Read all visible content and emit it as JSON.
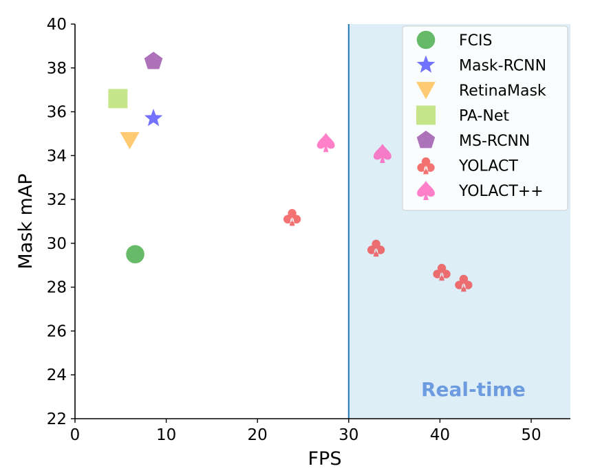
{
  "chart_data": {
    "type": "scatter",
    "xlabel": "FPS",
    "ylabel": "Mask mAP",
    "xlim": [
      0,
      54.3
    ],
    "ylim": [
      22,
      40
    ],
    "xticks": [
      "0",
      "10",
      "20",
      "30",
      "40",
      "50"
    ],
    "yticks": [
      "22",
      "24",
      "26",
      "28",
      "30",
      "32",
      "34",
      "36",
      "38",
      "40"
    ],
    "grid": false,
    "legend_position": "top-right",
    "region": {
      "label": "Real-time",
      "x_start": 30,
      "fill": "#ddeef6",
      "line_color": "#1f77b4",
      "label_color": "#6c9be0"
    },
    "series": [
      {
        "name": "FCIS",
        "marker": "circle",
        "color": "#2ca02c",
        "points": [
          {
            "x": 6.6,
            "y": 29.5
          }
        ]
      },
      {
        "name": "Mask-RCNN",
        "marker": "star",
        "color": "#3b3bff",
        "points": [
          {
            "x": 8.6,
            "y": 35.7
          }
        ]
      },
      {
        "name": "RetinaMask",
        "marker": "triangle-down",
        "color": "#ffb63b",
        "points": [
          {
            "x": 6.0,
            "y": 34.7
          }
        ]
      },
      {
        "name": "PA-Net",
        "marker": "square",
        "color": "#b2db5e",
        "points": [
          {
            "x": 4.7,
            "y": 36.6
          }
        ]
      },
      {
        "name": "MS-RCNN",
        "marker": "pentagon",
        "color": "#8e3c9f",
        "points": [
          {
            "x": 8.6,
            "y": 38.3
          }
        ]
      },
      {
        "name": "YOLACT",
        "marker": "club",
        "color": "#f03c3c",
        "points": [
          {
            "x": 23.8,
            "y": 31.2
          },
          {
            "x": 33.0,
            "y": 29.8
          },
          {
            "x": 40.2,
            "y": 28.7
          },
          {
            "x": 42.6,
            "y": 28.2
          }
        ]
      },
      {
        "name": "YOLACT++",
        "marker": "spade",
        "color": "#ff4fb4",
        "points": [
          {
            "x": 27.5,
            "y": 34.6
          },
          {
            "x": 33.7,
            "y": 34.1
          }
        ]
      }
    ]
  }
}
